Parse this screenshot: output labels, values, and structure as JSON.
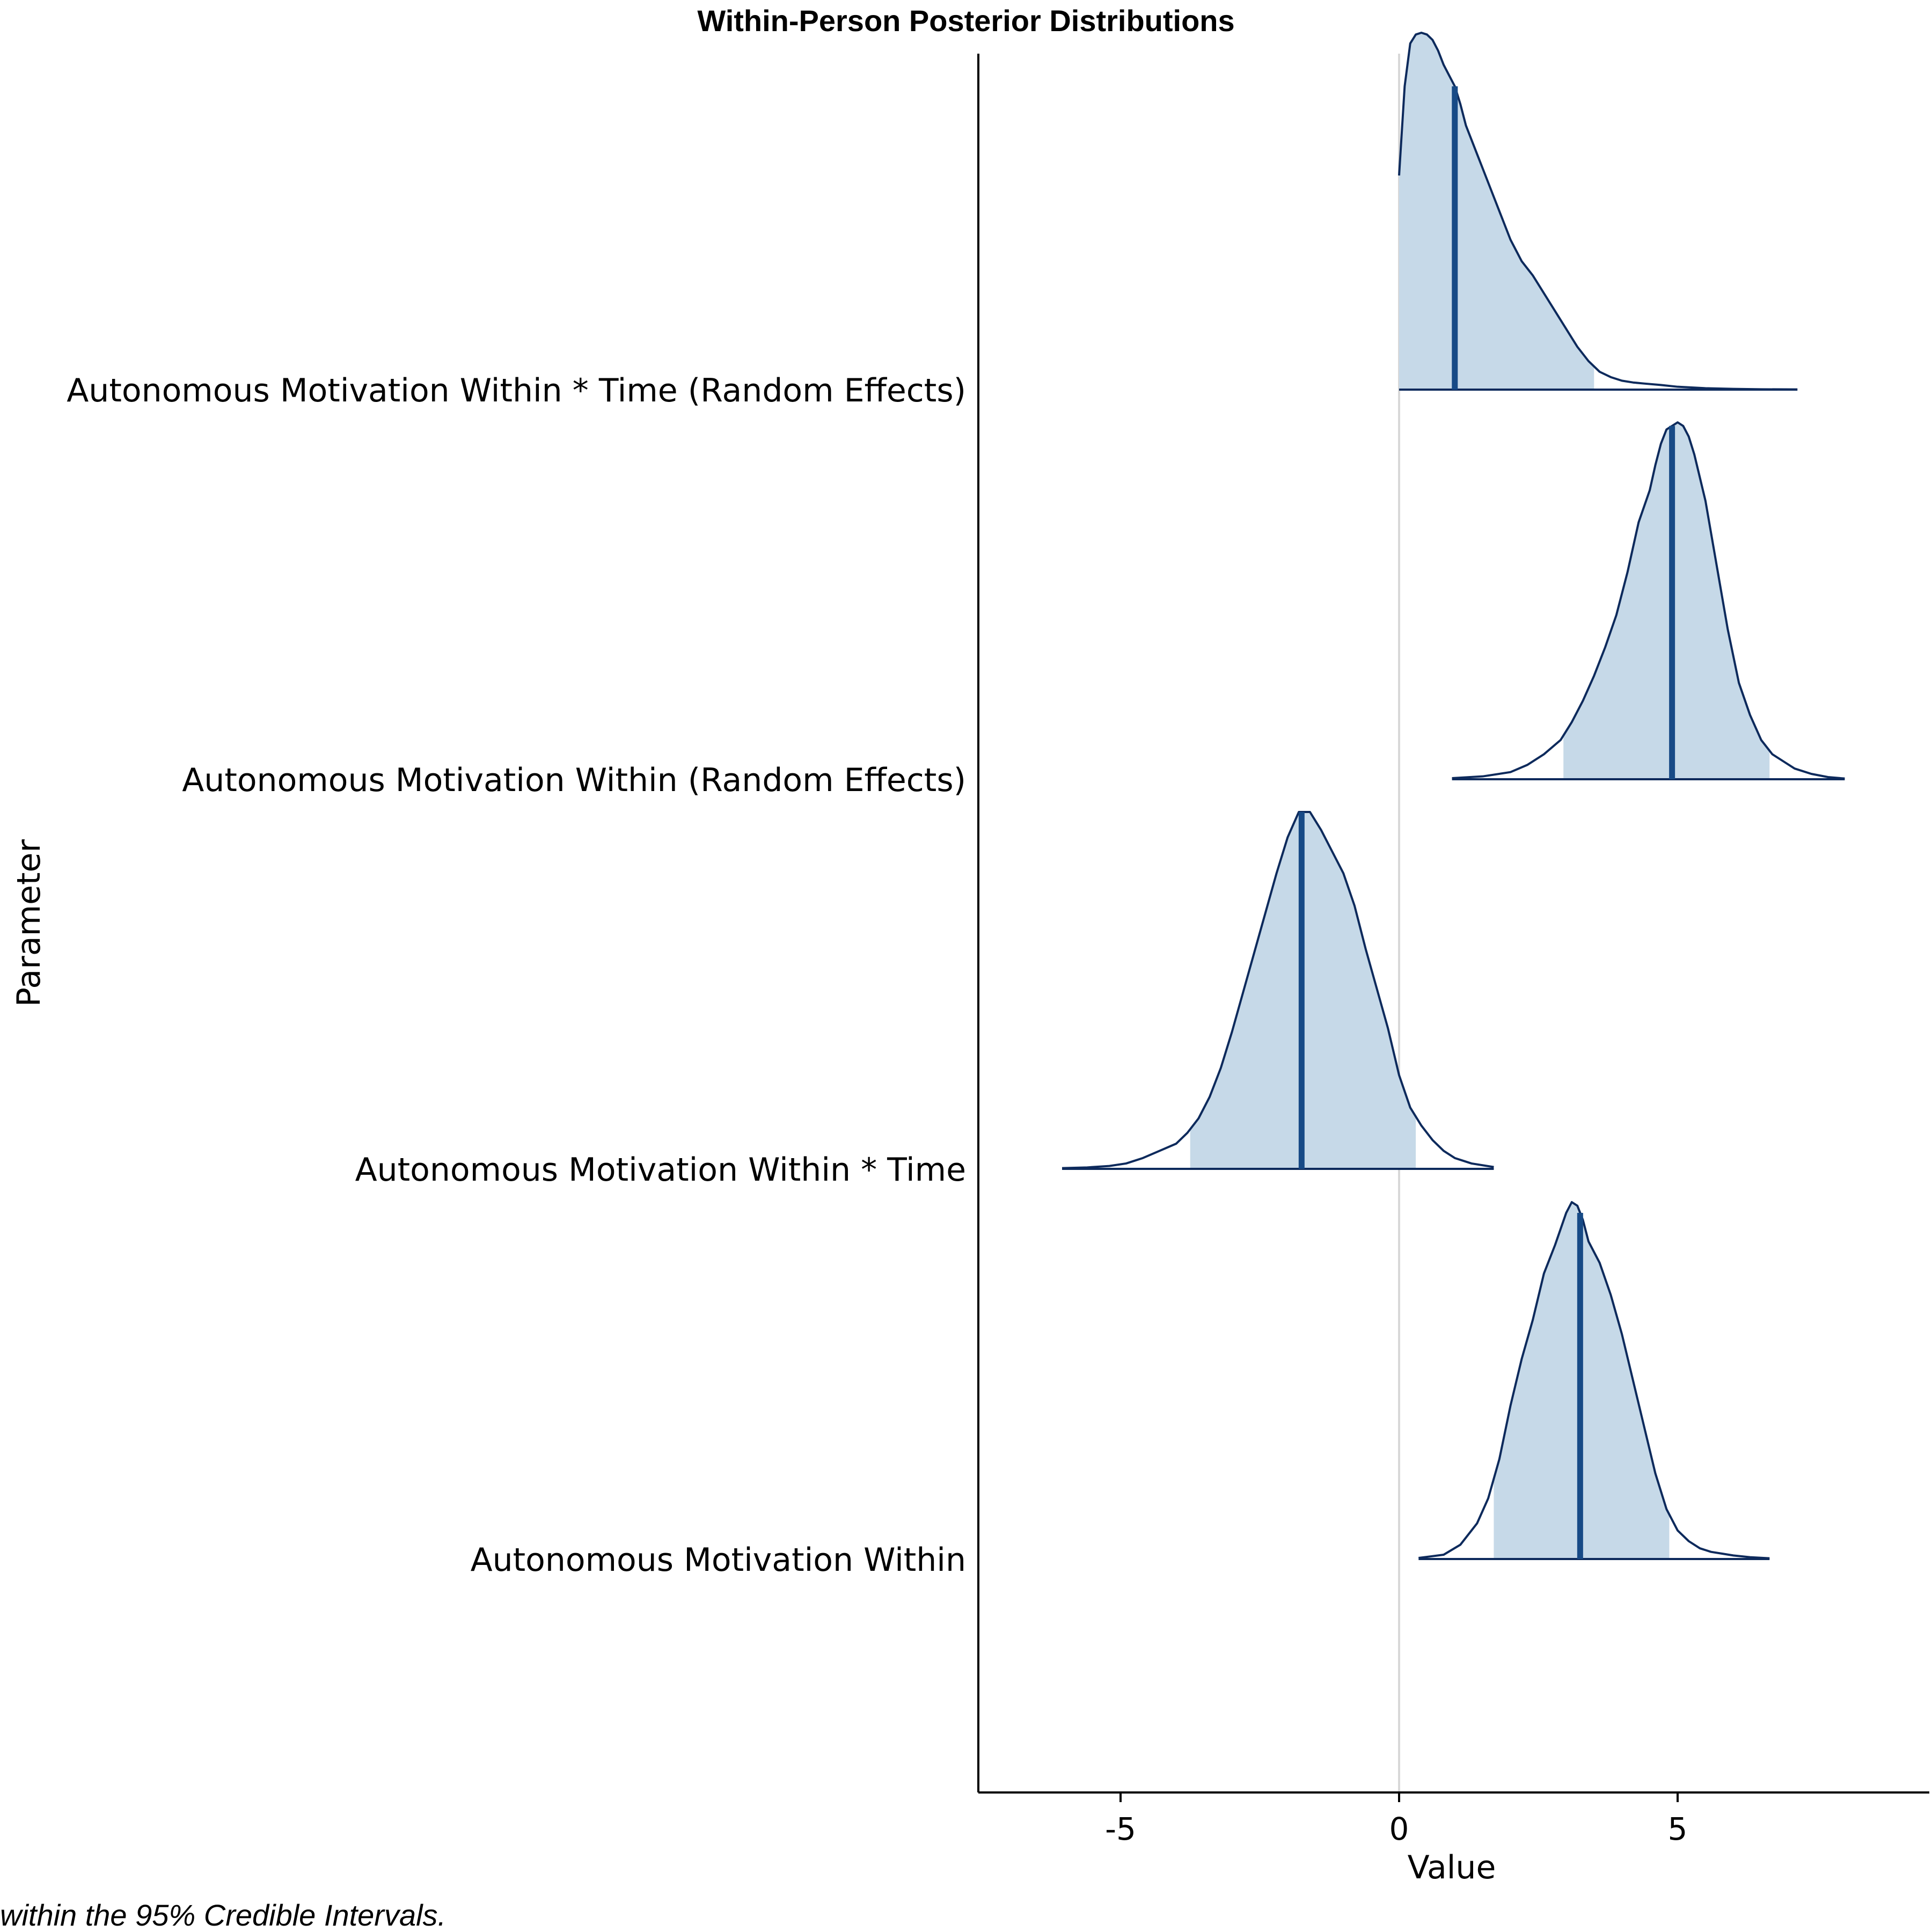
{
  "chart_data": {
    "type": "ridgeline",
    "title": "Within-Person Posterior Distributions",
    "xlabel": "Value",
    "ylabel": "Parameter",
    "note": "within the 95% Credible Intervals.",
    "xlim": [
      -7.6,
      9.5
    ],
    "xticks": [
      -5,
      0,
      5
    ],
    "xtick_labels": [
      "-5",
      "0",
      "5"
    ],
    "reference_line_x": 0,
    "grid": false,
    "colors": {
      "outline": "#0d2a5c",
      "interval_fill": "#c6d9e8",
      "median_line": "#174a86",
      "reference_line": "#d8d8d8",
      "axis": "#000000"
    },
    "series": [
      {
        "name": "Autonomous Motivation Within",
        "median": 3.25,
        "ci95": [
          1.7,
          4.85
        ],
        "density": {
          "x": [
            0.35,
            0.8,
            1.1,
            1.4,
            1.6,
            1.8,
            2.0,
            2.2,
            2.4,
            2.6,
            2.8,
            3.0,
            3.1,
            3.2,
            3.3,
            3.4,
            3.6,
            3.8,
            4.0,
            4.2,
            4.4,
            4.6,
            4.8,
            5.0,
            5.2,
            5.4,
            5.6,
            5.8,
            6.0,
            6.3,
            6.65
          ],
          "y": [
            0.003,
            0.012,
            0.04,
            0.1,
            0.17,
            0.28,
            0.43,
            0.56,
            0.67,
            0.8,
            0.88,
            0.97,
            1.0,
            0.99,
            0.95,
            0.89,
            0.83,
            0.74,
            0.63,
            0.5,
            0.37,
            0.24,
            0.14,
            0.08,
            0.05,
            0.03,
            0.02,
            0.015,
            0.01,
            0.005,
            0.002
          ]
        }
      },
      {
        "name": "Autonomous Motivation Within * Time",
        "median": -1.75,
        "ci95": [
          -3.75,
          0.3
        ],
        "density": {
          "x": [
            -6.05,
            -5.6,
            -5.2,
            -4.9,
            -4.6,
            -4.3,
            -4.0,
            -3.8,
            -3.6,
            -3.4,
            -3.2,
            -3.0,
            -2.8,
            -2.6,
            -2.4,
            -2.2,
            -2.0,
            -1.8,
            -1.6,
            -1.4,
            -1.2,
            -1.0,
            -0.8,
            -0.6,
            -0.4,
            -0.2,
            0.0,
            0.2,
            0.4,
            0.6,
            0.8,
            1.0,
            1.3,
            1.7
          ],
          "y": [
            0.002,
            0.004,
            0.008,
            0.015,
            0.03,
            0.05,
            0.07,
            0.1,
            0.14,
            0.2,
            0.28,
            0.38,
            0.49,
            0.6,
            0.71,
            0.82,
            0.92,
            0.99,
            0.99,
            0.94,
            0.88,
            0.82,
            0.73,
            0.61,
            0.5,
            0.39,
            0.26,
            0.17,
            0.12,
            0.08,
            0.05,
            0.03,
            0.015,
            0.005
          ]
        }
      },
      {
        "name": "Autonomous Motivation Within (Random Effects)",
        "median": 4.9,
        "ci95": [
          2.95,
          6.65
        ],
        "density": {
          "x": [
            0.95,
            1.5,
            2.0,
            2.3,
            2.6,
            2.9,
            3.1,
            3.3,
            3.5,
            3.7,
            3.9,
            4.1,
            4.3,
            4.5,
            4.6,
            4.7,
            4.8,
            4.9,
            5.0,
            5.1,
            5.2,
            5.3,
            5.5,
            5.7,
            5.9,
            6.1,
            6.3,
            6.5,
            6.7,
            6.9,
            7.1,
            7.4,
            7.7,
            8.0
          ],
          "y": [
            0.003,
            0.008,
            0.02,
            0.04,
            0.07,
            0.11,
            0.16,
            0.22,
            0.29,
            0.37,
            0.46,
            0.58,
            0.72,
            0.81,
            0.88,
            0.94,
            0.98,
            0.99,
            1.0,
            0.99,
            0.96,
            0.91,
            0.78,
            0.6,
            0.42,
            0.27,
            0.18,
            0.11,
            0.07,
            0.05,
            0.03,
            0.015,
            0.006,
            0.002
          ]
        }
      },
      {
        "name": "Autonomous Motivation Within * Time (Random Effects)",
        "median": 1.0,
        "ci95": [
          0.0,
          3.5
        ],
        "density": {
          "x": [
            0.0,
            0.1,
            0.2,
            0.3,
            0.4,
            0.5,
            0.6,
            0.7,
            0.8,
            0.9,
            1.0,
            1.1,
            1.2,
            1.3,
            1.4,
            1.5,
            1.6,
            1.8,
            2.0,
            2.2,
            2.4,
            2.6,
            2.8,
            3.0,
            3.2,
            3.4,
            3.6,
            3.8,
            4.0,
            4.2,
            4.4,
            4.7,
            5.0,
            5.5,
            6.0,
            6.5,
            7.15
          ],
          "y": [
            0.6,
            0.85,
            0.97,
            0.995,
            1.0,
            0.995,
            0.98,
            0.95,
            0.91,
            0.88,
            0.85,
            0.8,
            0.74,
            0.7,
            0.66,
            0.62,
            0.58,
            0.5,
            0.42,
            0.36,
            0.32,
            0.27,
            0.22,
            0.17,
            0.12,
            0.08,
            0.05,
            0.035,
            0.025,
            0.02,
            0.017,
            0.013,
            0.008,
            0.004,
            0.002,
            0.001,
            0.0005
          ]
        }
      }
    ]
  }
}
